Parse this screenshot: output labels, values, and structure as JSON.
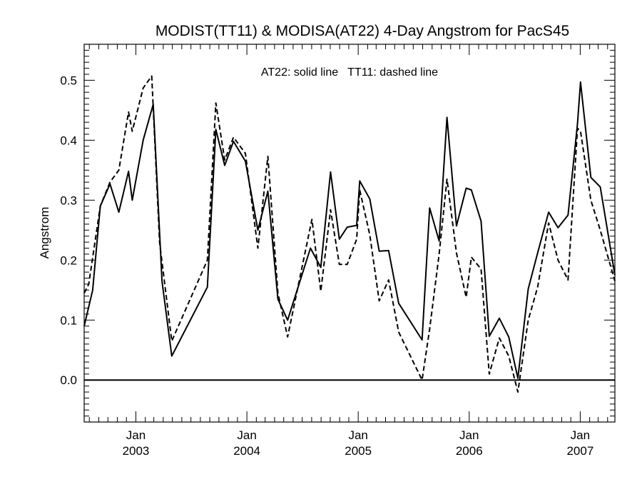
{
  "chart_data": {
    "type": "line",
    "title": "MODIST(TT11) & MODISA(AT22) 4-Day Angstrom for PacS45",
    "ylabel": "Angstrom",
    "xlabel": "",
    "annotation": "AT22: solid line   TT11: dashed line",
    "xlim": [
      "2002-07-15",
      "2007-04-25"
    ],
    "ylim": [
      -0.07,
      0.56
    ],
    "y_ticks": [
      0.0,
      0.1,
      0.2,
      0.3,
      0.4,
      0.5
    ],
    "y_tick_labels": [
      "0.0",
      "0.1",
      "0.2",
      "0.3",
      "0.4",
      "0.5"
    ],
    "x_ticks": [
      {
        "date": "2003-01-01",
        "month": "Jan",
        "year": "2003"
      },
      {
        "date": "2004-01-01",
        "month": "Jan",
        "year": "2004"
      },
      {
        "date": "2005-01-01",
        "month": "Jan",
        "year": "2005"
      },
      {
        "date": "2006-01-01",
        "month": "Jan",
        "year": "2006"
      },
      {
        "date": "2007-01-01",
        "month": "Jan",
        "year": "2007"
      }
    ],
    "reference_line_y": 0.0,
    "series": [
      {
        "style": "solid",
        "points": [
          [
            "2002-07-15",
            0.09
          ],
          [
            "2002-08-12",
            0.15
          ],
          [
            "2002-09-06",
            0.29
          ],
          [
            "2002-10-08",
            0.327
          ],
          [
            "2002-11-06",
            0.28
          ],
          [
            "2002-12-08",
            0.348
          ],
          [
            "2002-12-20",
            0.3
          ],
          [
            "2003-01-25",
            0.4
          ],
          [
            "2003-02-27",
            0.46
          ],
          [
            "2003-03-28",
            0.165
          ],
          [
            "2003-04-29",
            0.04
          ],
          [
            "2003-08-24",
            0.155
          ],
          [
            "2003-09-21",
            0.418
          ],
          [
            "2003-10-20",
            0.358
          ],
          [
            "2003-11-18",
            0.398
          ],
          [
            "2003-12-27",
            0.365
          ],
          [
            "2004-02-06",
            0.25
          ],
          [
            "2004-03-10",
            0.315
          ],
          [
            "2004-04-12",
            0.135
          ],
          [
            "2004-05-14",
            0.1
          ],
          [
            "2004-07-28",
            0.22
          ],
          [
            "2004-08-31",
            0.188
          ],
          [
            "2004-10-02",
            0.347
          ],
          [
            "2004-10-31",
            0.235
          ],
          [
            "2004-11-26",
            0.255
          ],
          [
            "2004-12-27",
            0.258
          ],
          [
            "2005-01-06",
            0.332
          ],
          [
            "2005-02-08",
            0.302
          ],
          [
            "2005-03-11",
            0.215
          ],
          [
            "2005-04-11",
            0.216
          ],
          [
            "2005-05-14",
            0.128
          ],
          [
            "2005-07-30",
            0.067
          ],
          [
            "2005-08-24",
            0.287
          ],
          [
            "2005-09-24",
            0.232
          ],
          [
            "2005-10-20",
            0.438
          ],
          [
            "2005-11-20",
            0.257
          ],
          [
            "2005-12-22",
            0.32
          ],
          [
            "2006-01-08",
            0.317
          ],
          [
            "2006-02-09",
            0.265
          ],
          [
            "2006-03-08",
            0.073
          ],
          [
            "2006-04-10",
            0.103
          ],
          [
            "2006-05-11",
            0.072
          ],
          [
            "2006-06-10",
            0.003
          ],
          [
            "2006-07-14",
            0.152
          ],
          [
            "2006-08-14",
            0.212
          ],
          [
            "2006-09-19",
            0.28
          ],
          [
            "2006-10-20",
            0.254
          ],
          [
            "2006-11-22",
            0.275
          ],
          [
            "2006-12-23",
            0.428
          ],
          [
            "2007-01-02",
            0.497
          ],
          [
            "2007-02-05",
            0.338
          ],
          [
            "2007-03-08",
            0.322
          ],
          [
            "2007-04-25",
            0.175
          ]
        ]
      },
      {
        "style": "dashed",
        "points": [
          [
            "2002-07-15",
            0.145
          ],
          [
            "2002-07-30",
            0.16
          ],
          [
            "2002-09-06",
            0.29
          ],
          [
            "2002-10-08",
            0.33
          ],
          [
            "2002-11-06",
            0.35
          ],
          [
            "2002-12-08",
            0.447
          ],
          [
            "2002-12-20",
            0.415
          ],
          [
            "2003-01-25",
            0.487
          ],
          [
            "2003-02-22",
            0.507
          ],
          [
            "2003-03-20",
            0.23
          ],
          [
            "2003-04-29",
            0.065
          ],
          [
            "2003-08-24",
            0.2
          ],
          [
            "2003-09-21",
            0.462
          ],
          [
            "2003-10-20",
            0.367
          ],
          [
            "2003-11-18",
            0.405
          ],
          [
            "2003-12-27",
            0.378
          ],
          [
            "2004-02-06",
            0.22
          ],
          [
            "2004-03-10",
            0.373
          ],
          [
            "2004-04-12",
            0.145
          ],
          [
            "2004-05-14",
            0.072
          ],
          [
            "2004-08-02",
            0.268
          ],
          [
            "2004-08-31",
            0.148
          ],
          [
            "2004-10-02",
            0.284
          ],
          [
            "2004-10-31",
            0.193
          ],
          [
            "2004-11-26",
            0.193
          ],
          [
            "2004-12-27",
            0.235
          ],
          [
            "2005-01-06",
            0.317
          ],
          [
            "2005-02-08",
            0.242
          ],
          [
            "2005-03-11",
            0.132
          ],
          [
            "2005-04-11",
            0.167
          ],
          [
            "2005-05-14",
            0.08
          ],
          [
            "2005-07-30",
            0.0
          ],
          [
            "2005-08-24",
            0.085
          ],
          [
            "2005-09-24",
            0.21
          ],
          [
            "2005-10-20",
            0.335
          ],
          [
            "2005-11-20",
            0.212
          ],
          [
            "2005-12-22",
            0.138
          ],
          [
            "2006-01-08",
            0.205
          ],
          [
            "2006-02-09",
            0.185
          ],
          [
            "2006-03-08",
            0.01
          ],
          [
            "2006-04-10",
            0.07
          ],
          [
            "2006-05-11",
            0.04
          ],
          [
            "2006-06-10",
            -0.02
          ],
          [
            "2006-07-14",
            0.1
          ],
          [
            "2006-08-14",
            0.155
          ],
          [
            "2006-09-19",
            0.262
          ],
          [
            "2006-10-20",
            0.2
          ],
          [
            "2006-11-22",
            0.167
          ],
          [
            "2006-12-23",
            0.42
          ],
          [
            "2007-01-02",
            0.415
          ],
          [
            "2007-02-05",
            0.3
          ],
          [
            "2007-03-08",
            0.25
          ],
          [
            "2007-04-25",
            0.165
          ]
        ]
      }
    ]
  }
}
